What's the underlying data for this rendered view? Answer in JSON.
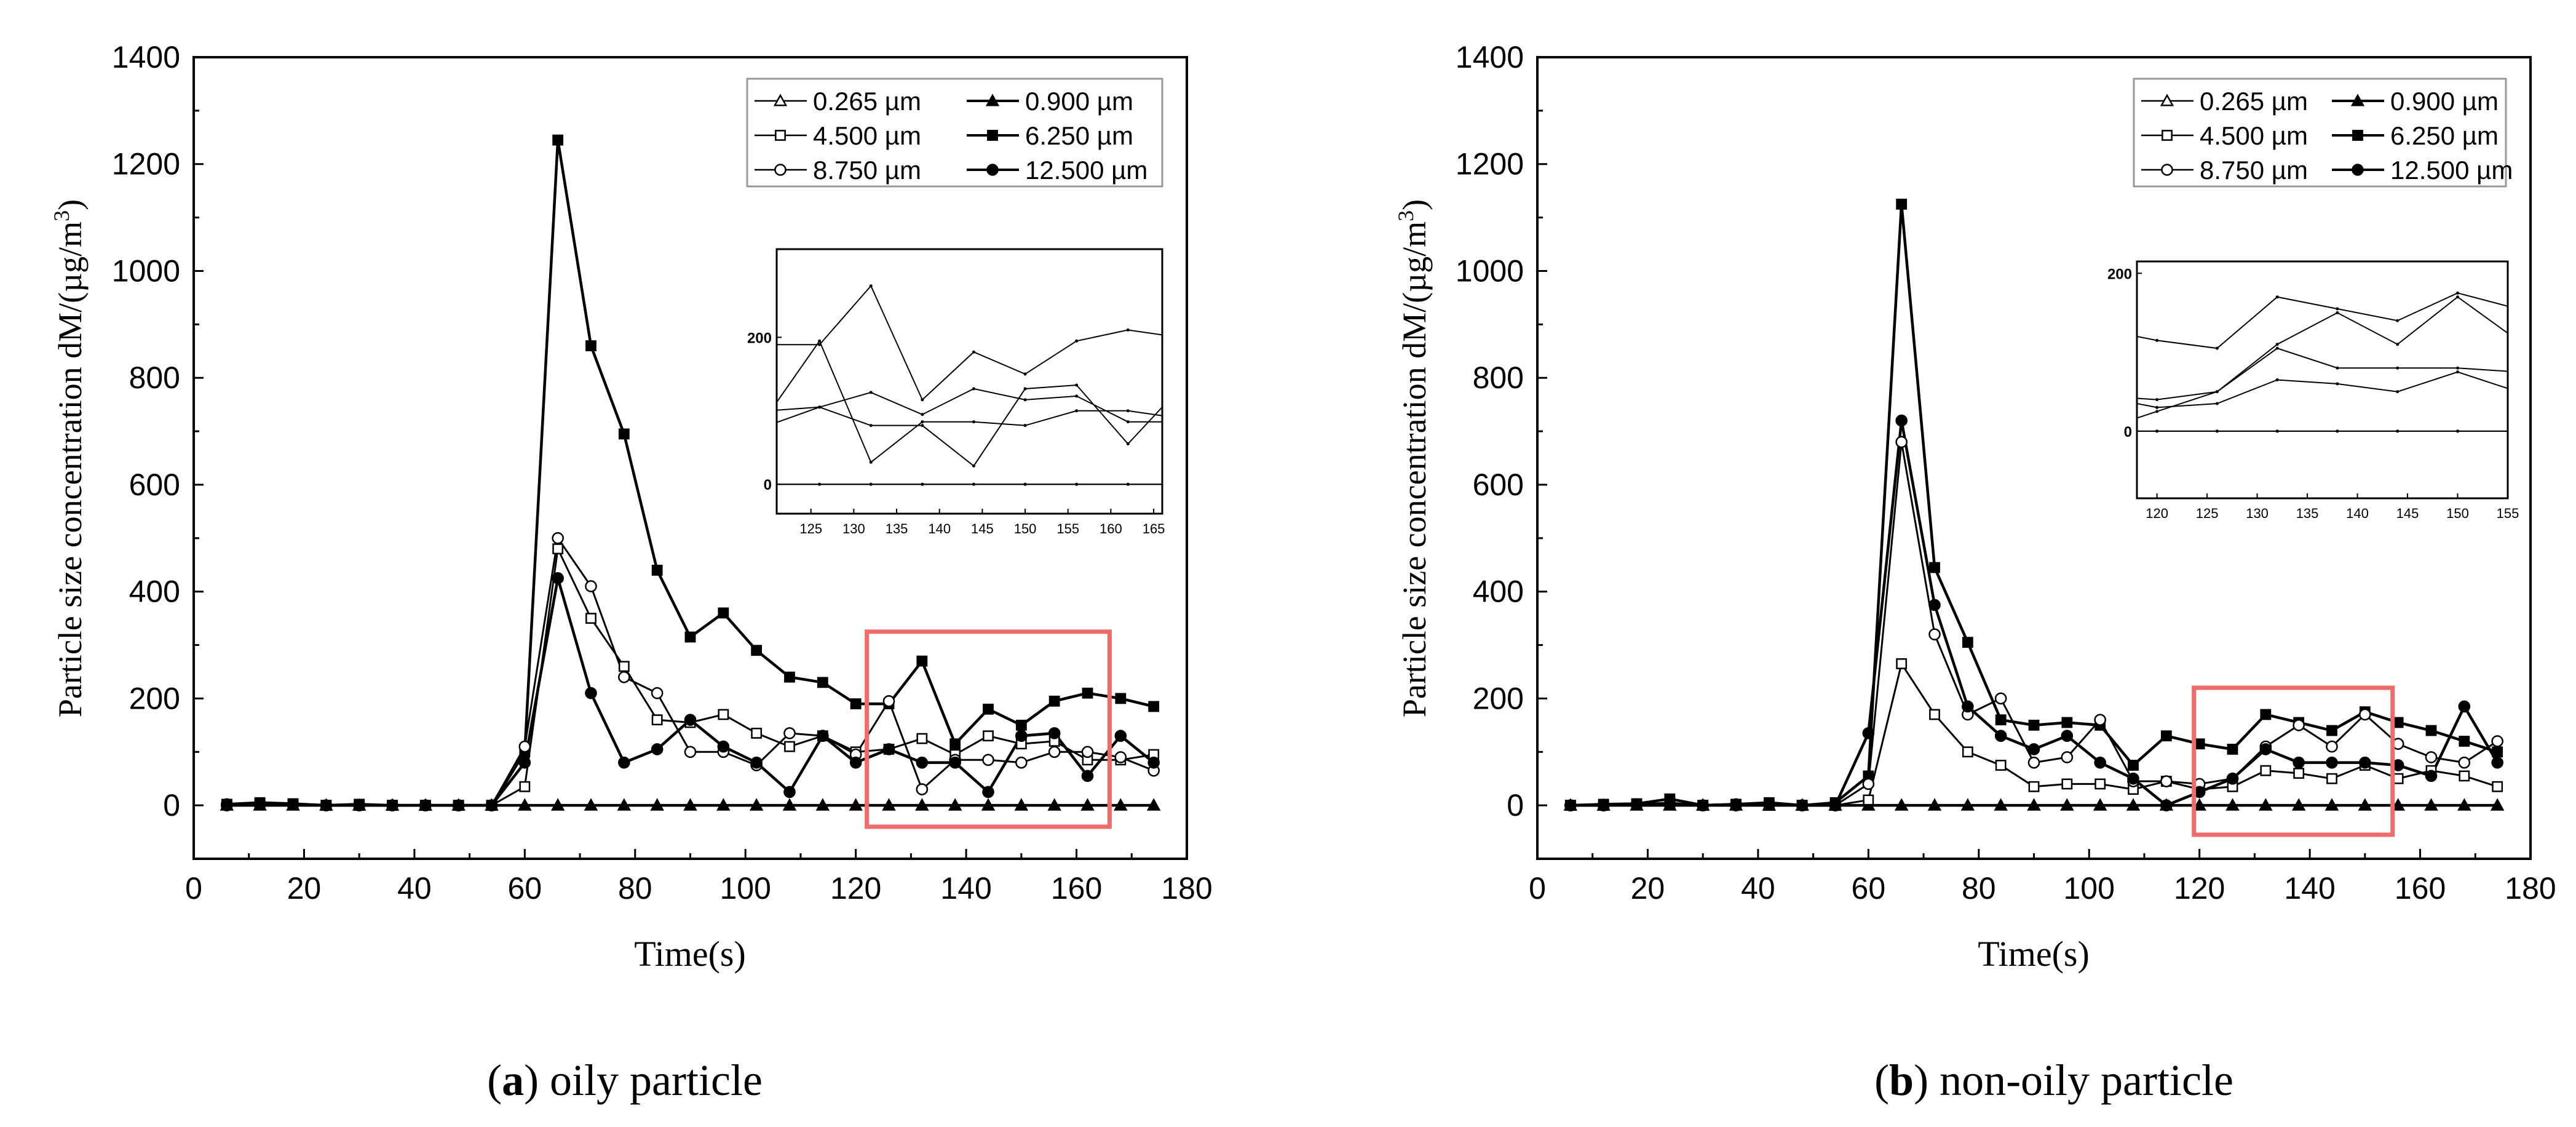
{
  "figure": {
    "caption_a_letter": "a",
    "caption_a_text": ") oily particle",
    "caption_b_letter": "b",
    "caption_b_text": ") non-oily particle"
  },
  "chart_data": [
    {
      "id": "a",
      "type": "line",
      "xlabel": "Time(s)",
      "ylabel": "Particle size concentration dM/(µg/m3)",
      "xlim": [
        0,
        180
      ],
      "ylim": [
        -100,
        1400
      ],
      "xticks": [
        0,
        20,
        40,
        60,
        80,
        100,
        120,
        140,
        160,
        180
      ],
      "yticks": [
        0,
        200,
        400,
        600,
        800,
        1000,
        1200,
        1400
      ],
      "legend": "top-right",
      "x": [
        6,
        12,
        18,
        24,
        30,
        36,
        42,
        48,
        54,
        60,
        66,
        72,
        78,
        84,
        90,
        96,
        102,
        108,
        114,
        120,
        126,
        132,
        138,
        144,
        150,
        156,
        162,
        168,
        174
      ],
      "series": [
        {
          "name": "0.265 µm",
          "marker": "triangle-open",
          "values": [
            0,
            0,
            0,
            0,
            0,
            0,
            0,
            0,
            0,
            0,
            0,
            0,
            0,
            0,
            0,
            0,
            0,
            0,
            0,
            0,
            0,
            0,
            0,
            0,
            0,
            0,
            0,
            0,
            0
          ]
        },
        {
          "name": "0.900 µm",
          "marker": "triangle-filled",
          "values": [
            0,
            0,
            0,
            0,
            0,
            0,
            0,
            0,
            0,
            0,
            0,
            0,
            0,
            0,
            0,
            0,
            0,
            0,
            0,
            0,
            0,
            0,
            0,
            0,
            0,
            0,
            0,
            0,
            0
          ]
        },
        {
          "name": "4.500 µm",
          "marker": "square-open",
          "values": [
            2,
            3,
            2,
            0,
            0,
            0,
            0,
            0,
            0,
            35,
            480,
            350,
            260,
            160,
            155,
            170,
            135,
            110,
            130,
            100,
            105,
            125,
            95,
            130,
            115,
            120,
            85,
            85,
            95
          ]
        },
        {
          "name": "6.250 µm",
          "marker": "square-filled",
          "values": [
            2,
            5,
            3,
            0,
            2,
            0,
            0,
            0,
            0,
            100,
            1245,
            860,
            695,
            440,
            315,
            360,
            290,
            240,
            230,
            190,
            190,
            270,
            115,
            180,
            150,
            195,
            210,
            200,
            185
          ]
        },
        {
          "name": "8.750 µm",
          "marker": "circle-open",
          "values": [
            2,
            3,
            2,
            0,
            0,
            0,
            0,
            0,
            0,
            110,
            500,
            410,
            240,
            210,
            100,
            100,
            75,
            135,
            130,
            95,
            195,
            30,
            85,
            85,
            80,
            100,
            100,
            90,
            65
          ]
        },
        {
          "name": "12.500 µm",
          "marker": "circle-filled",
          "values": [
            0,
            2,
            2,
            0,
            0,
            0,
            0,
            0,
            0,
            80,
            425,
            210,
            80,
            105,
            160,
            110,
            80,
            25,
            130,
            80,
            105,
            80,
            80,
            25,
            130,
            135,
            55,
            130,
            80
          ]
        }
      ],
      "highlight_box": {
        "x": [
          122,
          166
        ],
        "y": [
          -40,
          325
        ]
      },
      "inset": {
        "xlim": [
          121,
          166
        ],
        "ylim": [
          -40,
          320
        ],
        "xticks": [
          125,
          130,
          135,
          140,
          145,
          150,
          155,
          160,
          165
        ],
        "yticks": [
          0,
          200
        ]
      }
    },
    {
      "id": "b",
      "type": "line",
      "xlabel": "Time(s)",
      "ylabel": "Particle size concentration dM/(µg/m3)",
      "xlim": [
        0,
        180
      ],
      "ylim": [
        -100,
        1400
      ],
      "xticks": [
        0,
        20,
        40,
        60,
        80,
        100,
        120,
        140,
        160,
        180
      ],
      "yticks": [
        0,
        200,
        400,
        600,
        800,
        1000,
        1200,
        1400
      ],
      "legend": "top-right",
      "x": [
        6,
        12,
        18,
        24,
        30,
        36,
        42,
        48,
        54,
        60,
        66,
        72,
        78,
        84,
        90,
        96,
        102,
        108,
        114,
        120,
        126,
        132,
        138,
        144,
        150,
        156,
        162,
        168,
        174
      ],
      "series": [
        {
          "name": "0.265 µm",
          "marker": "triangle-open",
          "values": [
            0,
            0,
            0,
            0,
            0,
            0,
            0,
            0,
            0,
            0,
            0,
            0,
            0,
            0,
            0,
            0,
            0,
            0,
            0,
            0,
            0,
            0,
            0,
            0,
            0,
            0,
            0,
            0,
            0
          ]
        },
        {
          "name": "0.900 µm",
          "marker": "triangle-filled",
          "values": [
            0,
            0,
            0,
            0,
            0,
            0,
            0,
            0,
            0,
            0,
            0,
            0,
            0,
            0,
            0,
            0,
            0,
            0,
            0,
            0,
            0,
            0,
            0,
            0,
            0,
            0,
            0,
            0,
            0
          ]
        },
        {
          "name": "4.500 µm",
          "marker": "square-open",
          "values": [
            0,
            0,
            2,
            5,
            0,
            2,
            0,
            0,
            0,
            10,
            265,
            170,
            100,
            75,
            35,
            40,
            40,
            30,
            45,
            30,
            35,
            65,
            60,
            50,
            75,
            50,
            65,
            55,
            35
          ]
        },
        {
          "name": "6.250 µm",
          "marker": "square-filled",
          "values": [
            0,
            2,
            3,
            12,
            0,
            2,
            5,
            0,
            5,
            55,
            1125,
            445,
            305,
            160,
            150,
            155,
            150,
            75,
            130,
            115,
            105,
            170,
            155,
            140,
            175,
            155,
            140,
            120,
            100
          ]
        },
        {
          "name": "8.750 µm",
          "marker": "circle-open",
          "values": [
            0,
            0,
            2,
            2,
            0,
            0,
            2,
            0,
            0,
            40,
            680,
            320,
            170,
            200,
            80,
            90,
            160,
            45,
            45,
            40,
            50,
            110,
            150,
            110,
            170,
            115,
            90,
            80,
            120
          ]
        },
        {
          "name": "12.500 µm",
          "marker": "circle-filled",
          "values": [
            0,
            0,
            2,
            2,
            0,
            2,
            2,
            0,
            0,
            135,
            720,
            375,
            185,
            130,
            105,
            130,
            80,
            50,
            0,
            25,
            50,
            105,
            80,
            80,
            80,
            75,
            55,
            185,
            80
          ]
        }
      ],
      "highlight_box": {
        "x": [
          119,
          155
        ],
        "y": [
          -55,
          220
        ]
      },
      "inset": {
        "xlim": [
          118,
          155
        ],
        "ylim": [
          -85,
          215
        ],
        "xticks": [
          120,
          125,
          130,
          135,
          140,
          145,
          150,
          155
        ],
        "yticks": [
          0,
          200
        ]
      }
    }
  ]
}
